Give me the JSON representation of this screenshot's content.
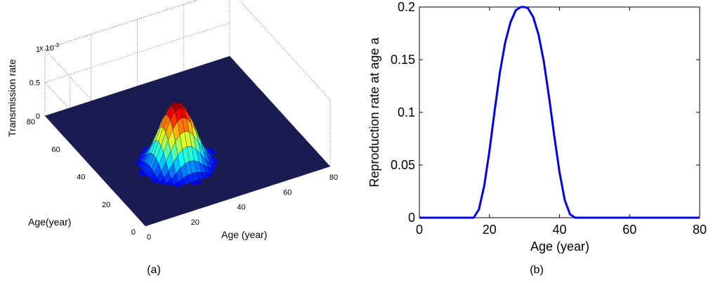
{
  "captions": {
    "a": "(a)",
    "b": "(b)"
  },
  "colors": {
    "line": "#0000ee",
    "grid": "#555555",
    "surface_base": "#1c1c55"
  },
  "chart_data": [
    {
      "type": "surface",
      "zlabel": "Transmission rate",
      "xlabel": "Age (year)",
      "ylabel": "Age(year)",
      "z_exponent_label": "x 10",
      "z_exponent_power": "-3",
      "xlim": [
        0,
        80
      ],
      "ylim": [
        0,
        80
      ],
      "zlim": [
        0,
        1
      ],
      "x_ticks": [
        "0",
        "20",
        "40",
        "60",
        "80"
      ],
      "y_ticks": [
        "0",
        "20",
        "40",
        "60",
        "80"
      ],
      "z_ticks": [
        "0",
        "0.5",
        "1"
      ],
      "peak_center": [
        30,
        30
      ],
      "peak_value": 0.0009,
      "peak_radius": 15,
      "colormap": "jet",
      "grid": true
    },
    {
      "type": "line",
      "xlabel": "Age (year)",
      "ylabel": "Reproduction rate at age a",
      "xlim": [
        0,
        80
      ],
      "ylim": [
        0,
        0.2
      ],
      "x_ticks": [
        "0",
        "20",
        "40",
        "60",
        "80"
      ],
      "y_ticks": [
        "0",
        "0.05",
        "0.1",
        "0.15",
        "0.2"
      ],
      "series": [
        {
          "x": [
            0,
            5,
            10,
            15,
            15.5,
            17,
            18.5,
            20,
            21.5,
            23,
            24.5,
            26,
            27.5,
            29,
            30,
            31,
            32.5,
            34,
            35.5,
            37,
            38.5,
            40,
            41.5,
            43,
            44.5,
            45,
            50,
            60,
            70,
            80
          ],
          "y": [
            0,
            0,
            0,
            0,
            0.0,
            0.0079,
            0.0302,
            0.0636,
            0.1018,
            0.1382,
            0.1665,
            0.1854,
            0.197,
            0.2,
            0.2,
            0.1989,
            0.1904,
            0.1739,
            0.1485,
            0.115,
            0.0778,
            0.0431,
            0.0166,
            0.0032,
            0.0,
            0,
            0,
            0,
            0,
            0
          ]
        }
      ],
      "grid": false
    }
  ]
}
